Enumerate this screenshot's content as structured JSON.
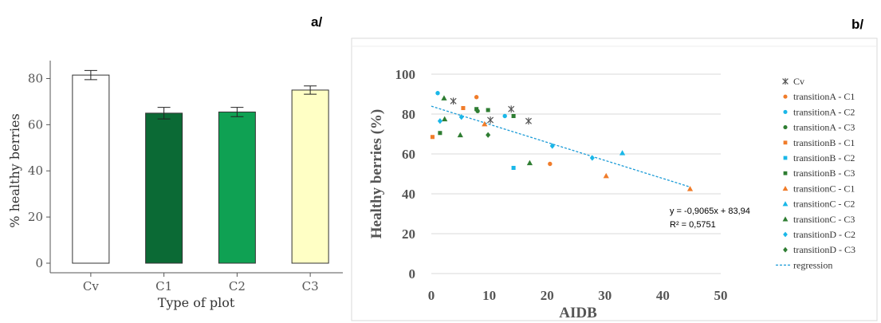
{
  "chart_data": [
    {
      "panel_label": "a/",
      "type": "bar",
      "categories": [
        "Cv",
        "C1",
        "C2",
        "C3"
      ],
      "values": [
        81.5,
        65.0,
        65.5,
        75.0
      ],
      "errors": [
        2.0,
        2.5,
        2.0,
        1.8
      ],
      "colors": [
        "#ffffff",
        "#0b6a35",
        "#0fa153",
        "#ffffc5"
      ],
      "xlabel": "Type of plot",
      "ylabel": "% healthy berries",
      "ylim": [
        0,
        85
      ],
      "yticks": [
        0,
        20,
        40,
        60,
        80
      ],
      "grid": false
    },
    {
      "panel_label": "b/",
      "type": "scatter",
      "xlabel": "AIDB",
      "ylabel": "Healthy berries (%)",
      "xlim": [
        0,
        50
      ],
      "ylim": [
        0,
        100
      ],
      "xticks": [
        0,
        10,
        20,
        30,
        40,
        50
      ],
      "yticks": [
        0,
        20,
        40,
        60,
        80,
        100
      ],
      "grid": "horizontal",
      "legend_position": "right",
      "series": [
        {
          "name": "Cv",
          "marker": "star",
          "color": "#555555",
          "points": [
            [
              3.8,
              86.5
            ],
            [
              10.2,
              77
            ],
            [
              13.8,
              82.5
            ],
            [
              16.8,
              76.5
            ]
          ]
        },
        {
          "name": "transitionA - C1",
          "marker": "circle",
          "color": "#f07c2a",
          "points": [
            [
              7.8,
              88.5
            ],
            [
              20.5,
              55
            ]
          ]
        },
        {
          "name": "transitionA - C2",
          "marker": "circle",
          "color": "#1ab7e8",
          "points": [
            [
              1.1,
              90.5
            ],
            [
              12.7,
              79
            ]
          ]
        },
        {
          "name": "transitionA - C3",
          "marker": "circle",
          "color": "#2e7d32",
          "points": [
            [
              8.0,
              81.5
            ]
          ]
        },
        {
          "name": "transitionB - C1",
          "marker": "square",
          "color": "#f07c2a",
          "points": [
            [
              0.2,
              68.5
            ],
            [
              5.5,
              83
            ]
          ]
        },
        {
          "name": "transitionB - C2",
          "marker": "square",
          "color": "#1ab7e8",
          "points": [
            [
              14.2,
              53
            ]
          ]
        },
        {
          "name": "transitionB - C3",
          "marker": "square",
          "color": "#2e7d32",
          "points": [
            [
              1.5,
              70.5
            ],
            [
              7.8,
              82.5
            ],
            [
              9.8,
              82
            ],
            [
              14.2,
              79
            ]
          ]
        },
        {
          "name": "transitionC - C1",
          "marker": "triangle",
          "color": "#f07c2a",
          "points": [
            [
              9.2,
              75
            ],
            [
              30.2,
              49
            ],
            [
              44.7,
              42.5
            ]
          ]
        },
        {
          "name": "transitionC - C2",
          "marker": "triangle",
          "color": "#1ab7e8",
          "points": [
            [
              33.0,
              60.5
            ]
          ]
        },
        {
          "name": "transitionC - C3",
          "marker": "triangle",
          "color": "#2e7d32",
          "points": [
            [
              2.2,
              88
            ],
            [
              5.0,
              69.5
            ],
            [
              17.0,
              55.5
            ],
            [
              2.3,
              77.5
            ]
          ]
        },
        {
          "name": "transitionD - C2",
          "marker": "diamond",
          "color": "#1ab7e8",
          "points": [
            [
              5.2,
              78.5
            ],
            [
              20.9,
              64
            ],
            [
              27.8,
              58
            ],
            [
              1.5,
              76.5
            ]
          ]
        },
        {
          "name": "transitionD - C3",
          "marker": "diamond",
          "color": "#2e7d32",
          "points": [
            [
              9.8,
              69.5
            ]
          ]
        }
      ],
      "regression": {
        "name": "regression",
        "slope": -0.9065,
        "intercept": 83.94,
        "x_range": [
          0,
          44.7
        ],
        "color": "#1a9bd7",
        "equation": "y = -0,9065x + 83,94",
        "r2": "R² = 0,5751"
      }
    }
  ]
}
